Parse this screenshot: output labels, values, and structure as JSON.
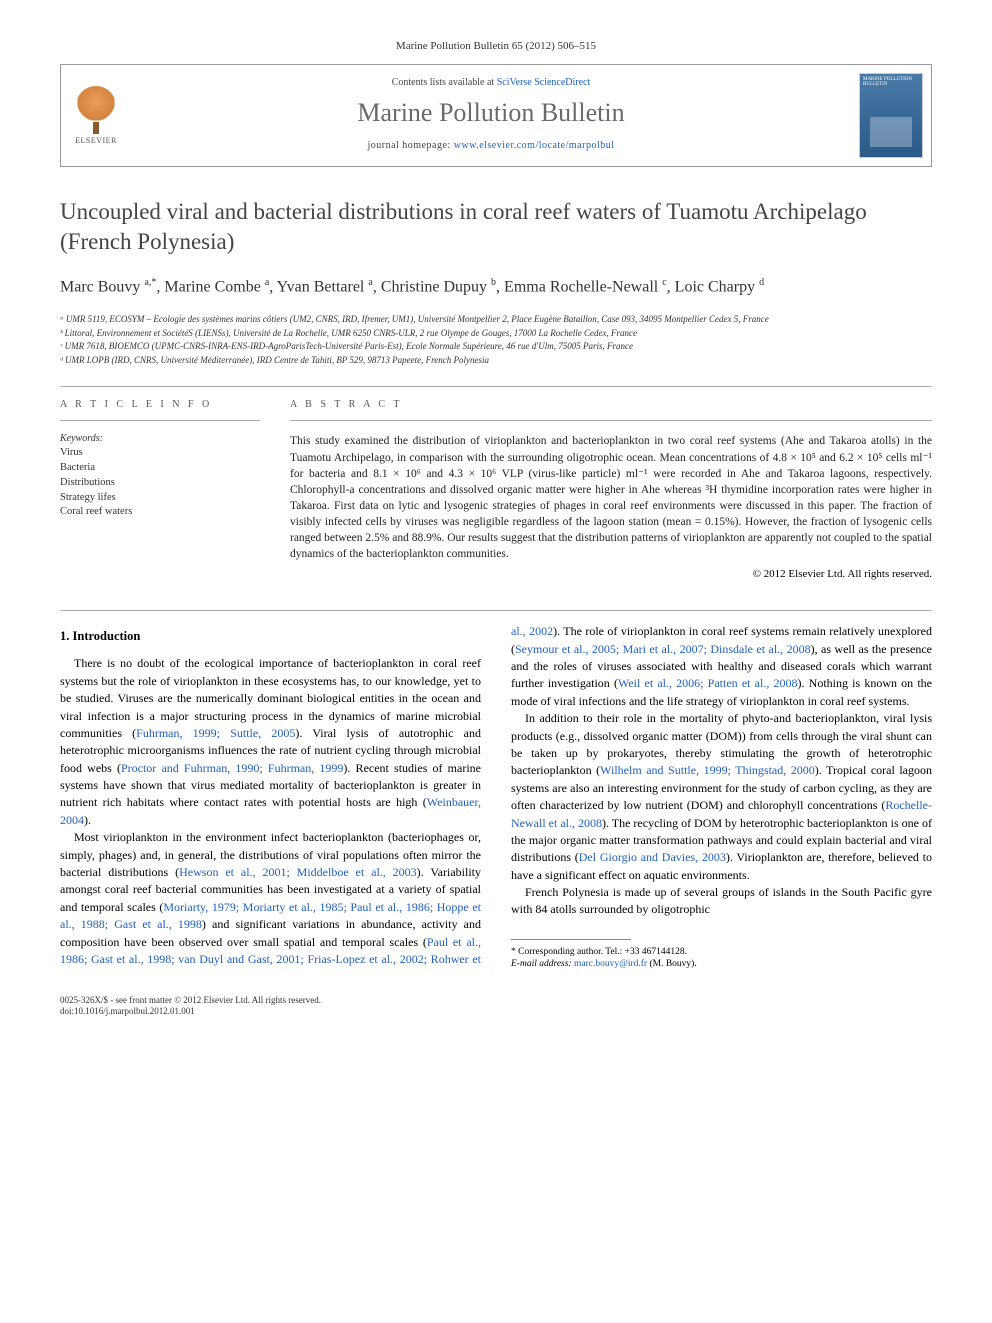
{
  "journal_ref": "Marine Pollution Bulletin 65 (2012) 506–515",
  "header": {
    "contents_prefix": "Contents lists available at ",
    "contents_link": "SciVerse ScienceDirect",
    "journal_name": "Marine Pollution Bulletin",
    "homepage_prefix": "journal homepage: ",
    "homepage_url": "www.elsevier.com/locate/marpolbul",
    "publisher": "ELSEVIER",
    "cover_title": "MARINE POLLUTION BULLETIN"
  },
  "title": "Uncoupled viral and bacterial distributions in coral reef waters of Tuamotu Archipelago (French Polynesia)",
  "authors_html": "Marc Bouvy <sup>a,*</sup>, Marine Combe <sup>a</sup>, Yvan Bettarel <sup>a</sup>, Christine Dupuy <sup>b</sup>, Emma Rochelle-Newall <sup>c</sup>, Loic Charpy <sup>d</sup>",
  "affiliations": [
    "ᵃ UMR 5119, ECOSYM – Ecologie des systèmes marins côtiers (UM2, CNRS, IRD, Ifremer, UM1), Université Montpellier 2, Place Eugène Bataillon, Case 093, 34095 Montpellier Cedex 5, France",
    "ᵇ Littoral, Environnement et SociétéS (LIENSs), Université de La Rochelle, UMR 6250 CNRS-ULR, 2 rue Olympe de Gouges, 17000 La Rochelle Cedex, France",
    "ᶜ UMR 7618, BIOEMCO (UPMC-CNRS-INRA-ENS-IRD-AgroParisTech-Université Paris-Est), Ecole Normale Supérieure, 46 rue d'Ulm, 75005 Paris, France",
    "ᵈ UMR LOPB (IRD, CNRS, Université Méditerranée), IRD Centre de Tahiti, BP 529, 98713 Papeete, French Polynesia"
  ],
  "article_info_label": "A R T I C L E   I N F O",
  "abstract_label": "A B S T R A C T",
  "keywords_label": "Keywords:",
  "keywords": [
    "Virus",
    "Bacteria",
    "Distributions",
    "Strategy lifes",
    "Coral reef waters"
  ],
  "abstract": "This study examined the distribution of virioplankton and bacterioplankton in two coral reef systems (Ahe and Takaroa atolls) in the Tuamotu Archipelago, in comparison with the surrounding oligotrophic ocean. Mean concentrations of 4.8 × 10⁵ and 6.2 × 10⁵ cells ml⁻¹ for bacteria and 8.1 × 10⁶ and 4.3 × 10⁶ VLP (virus-like particle) ml⁻¹ were recorded in Ahe and Takaroa lagoons, respectively. Chlorophyll-a concentrations and dissolved organic matter were higher in Ahe whereas ³H thymidine incorporation rates were higher in Takaroa. First data on lytic and lysogenic strategies of phages in coral reef environments were discussed in this paper. The fraction of visibly infected cells by viruses was negligible regardless of the lagoon station (mean = 0.15%). However, the fraction of lysogenic cells ranged between 2.5% and 88.9%. Our results suggest that the distribution patterns of virioplankton are apparently not coupled to the spatial dynamics of the bacterioplankton communities.",
  "copyright": "© 2012 Elsevier Ltd. All rights reserved.",
  "intro_heading": "1. Introduction",
  "intro_p1_a": "There is no doubt of the ecological importance of bacterioplankton in coral reef systems but the role of virioplankton in these ecosystems has, to our knowledge, yet to be studied. Viruses are the numerically dominant biological entities in the ocean and viral infection is a major structuring process in the dynamics of marine microbial communities (",
  "intro_p1_ref1": "Fuhrman, 1999; Suttle, 2005",
  "intro_p1_b": "). Viral lysis of autotrophic and heterotrophic microorganisms influences the rate of nutrient cycling through microbial food webs (",
  "intro_p1_ref2": "Proctor and Fuhrman, 1990; Fuhrman, 1999",
  "intro_p1_c": "). Recent studies of marine systems have shown that virus mediated mortality of bacterioplankton is greater in nutrient rich habitats where contact rates with potential hosts are high (",
  "intro_p1_ref3": "Weinbauer, 2004",
  "intro_p1_d": ").",
  "intro_p2_a": "Most virioplankton in the environment infect bacterioplankton (bacteriophages or, simply, phages) and, in general, the distributions of viral populations often mirror the bacterial distributions (",
  "intro_p2_ref1": "Hewson et al., 2001; Middelboe et al., 2003",
  "intro_p2_b": "). Variability amongst coral reef bacterial communities has been investigated at a variety of spatial and temporal scales (",
  "intro_p2_ref2": "Moriarty, 1979; Moriarty et al., 1985; Paul et al., 1986; Hoppe et al., 1988; Gast et al., 1998",
  "intro_p2_c": ") and significant variations in abundance, activity and composition have been observed over small spatial and temporal scales (",
  "intro_p2_ref3": "Paul et al., 1986; Gast et al., 1998; van Duyl and Gast, 2001; Frias-Lopez et al., 2002; Rohwer et al., 2002",
  "intro_p2_d": "). The role of virioplankton in coral reef systems remain relatively unexplored (",
  "intro_p2_ref4": "Seymour et al., 2005; Mari et al., 2007; Dinsdale et al., 2008",
  "intro_p2_e": "), as well as the presence and the roles of viruses associated with healthy and diseased corals which warrant further investigation (",
  "intro_p2_ref5": "Weil et al., 2006; Patten et al., 2008",
  "intro_p2_f": "). Nothing is known on the mode of viral infections and the life strategy of virioplankton in coral reef systems.",
  "intro_p3_a": "In addition to their role in the mortality of phyto-and bacterioplankton, viral lysis products (e.g., dissolved organic matter (DOM)) from cells through the viral shunt can be taken up by prokaryotes, thereby stimulating the growth of heterotrophic bacterioplankton (",
  "intro_p3_ref1": "Wilhelm and Suttle, 1999; Thingstad, 2000",
  "intro_p3_b": "). Tropical coral lagoon systems are also an interesting environment for the study of carbon cycling, as they are often characterized by low nutrient (DOM) and chlorophyll concentrations (",
  "intro_p3_ref2": "Rochelle-Newall et al., 2008",
  "intro_p3_c": "). The recycling of DOM by heterotrophic bacterioplankton is one of the major organic matter transformation pathways and could explain bacterial and viral distributions (",
  "intro_p3_ref3": "Del Giorgio and Davies, 2003",
  "intro_p3_d": "). Virioplankton are, therefore, believed to have a significant effect on aquatic environments.",
  "intro_p4": "French Polynesia is made up of several groups of islands in the South Pacific gyre with 84 atolls surrounded by oligotrophic",
  "footnote_corr": "* Corresponding author. Tel.: +33 467144128.",
  "footnote_email_label": "E-mail address: ",
  "footnote_email": "marc.bouvy@ird.fr",
  "footnote_email_suffix": " (M. Bouvy).",
  "footer_issn": "0025-326X/$ - see front matter © 2012 Elsevier Ltd. All rights reserved.",
  "footer_doi": "doi:10.1016/j.marpolbul.2012.01.001",
  "colors": {
    "link": "#2060c0",
    "title_gray": "#444444",
    "journal_gray": "#6a6a6a",
    "border": "#999999",
    "text": "#222222"
  }
}
